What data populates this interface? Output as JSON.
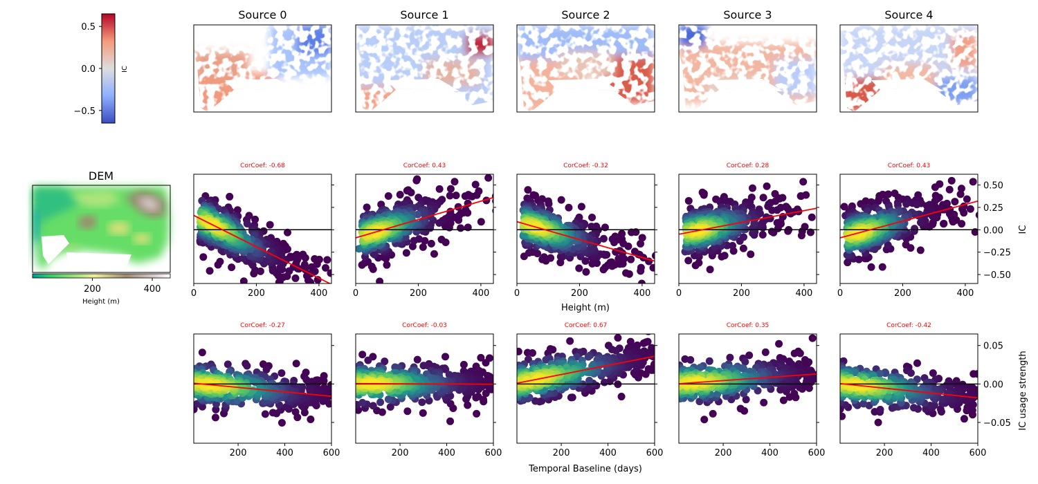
{
  "colors": {
    "fit_line": "#ff0000",
    "zero_line": "#000000",
    "cmap_ic": [
      "#3b4cc0",
      "#8db0fe",
      "#dddddd",
      "#f49a7b",
      "#b40426"
    ],
    "cmap_density": [
      "#440154",
      "#3b528b",
      "#21918c",
      "#5ec962",
      "#fde725"
    ],
    "cmap_dem": [
      "#009999",
      "#33cc66",
      "#99e17a",
      "#f0f09a",
      "#a08a70",
      "#d8cccc",
      "#ffffff"
    ]
  },
  "colorbar_ic": {
    "label": "IC",
    "ticks": [
      "0.5",
      "0.0",
      "−0.5"
    ],
    "range": [
      -0.65,
      0.65
    ]
  },
  "dem": {
    "title": "DEM",
    "xlabel": "Height (m)",
    "ticks": [
      "200",
      "400"
    ],
    "range": [
      0,
      460
    ]
  },
  "sources": [
    {
      "title": "Source 0"
    },
    {
      "title": "Source 1"
    },
    {
      "title": "Source 2"
    },
    {
      "title": "Source 3"
    },
    {
      "title": "Source 4"
    }
  ],
  "chart_data": [
    {
      "type": "scatter",
      "name": "height_vs_ic",
      "xlabel": "Height (m)",
      "ylabel": "IC",
      "xlim": [
        0,
        440
      ],
      "ylim": [
        -0.6,
        0.62
      ],
      "xticks": [
        0,
        200,
        400
      ],
      "xtick_labels": [
        "0",
        "200",
        "400"
      ],
      "yticks": [
        -0.5,
        -0.25,
        0,
        0.25,
        0.5
      ],
      "ytick_labels": [
        "−0.50",
        "−0.25",
        "0.00",
        "0.25",
        "0.50"
      ],
      "panels": [
        {
          "corcoef": "CorCoef: -0.68",
          "fit": [
            [
              0,
              0.16
            ],
            [
              440,
              -0.61
            ]
          ]
        },
        {
          "corcoef": "CorCoef: 0.43",
          "fit": [
            [
              0,
              -0.09
            ],
            [
              440,
              0.36
            ]
          ]
        },
        {
          "corcoef": "CorCoef: -0.32",
          "fit": [
            [
              0,
              0.09
            ],
            [
              440,
              -0.35
            ]
          ]
        },
        {
          "corcoef": "CorCoef: 0.28",
          "fit": [
            [
              0,
              -0.05
            ],
            [
              440,
              0.24
            ]
          ]
        },
        {
          "corcoef": "CorCoef: 0.43",
          "fit": [
            [
              0,
              -0.09
            ],
            [
              440,
              0.32
            ]
          ]
        }
      ]
    },
    {
      "type": "scatter",
      "name": "baseline_vs_usage",
      "xlabel": "Temporal Baseline (days)",
      "ylabel": "IC usage strength",
      "xlim": [
        10,
        600
      ],
      "ylim": [
        -0.077,
        0.065
      ],
      "xticks": [
        200,
        400,
        600
      ],
      "xtick_labels": [
        "200",
        "400",
        "600"
      ],
      "yticks": [
        -0.05,
        0,
        0.05
      ],
      "ytick_labels": [
        "−0.05",
        "0.00",
        "0.05"
      ],
      "panels": [
        {
          "corcoef": "CorCoef: -0.27",
          "fit": [
            [
              10,
              0.001
            ],
            [
              600,
              -0.016
            ]
          ]
        },
        {
          "corcoef": "CorCoef: -0.03",
          "fit": [
            [
              10,
              0.0005
            ],
            [
              600,
              -0.0003
            ]
          ]
        },
        {
          "corcoef": "CorCoef: 0.67",
          "fit": [
            [
              10,
              0.001
            ],
            [
              600,
              0.036
            ]
          ]
        },
        {
          "corcoef": "CorCoef: 0.35",
          "fit": [
            [
              10,
              0.0003
            ],
            [
              600,
              0.013
            ]
          ]
        },
        {
          "corcoef": "CorCoef: -0.42",
          "fit": [
            [
              10,
              0.0005
            ],
            [
              600,
              -0.018
            ]
          ]
        }
      ]
    }
  ]
}
